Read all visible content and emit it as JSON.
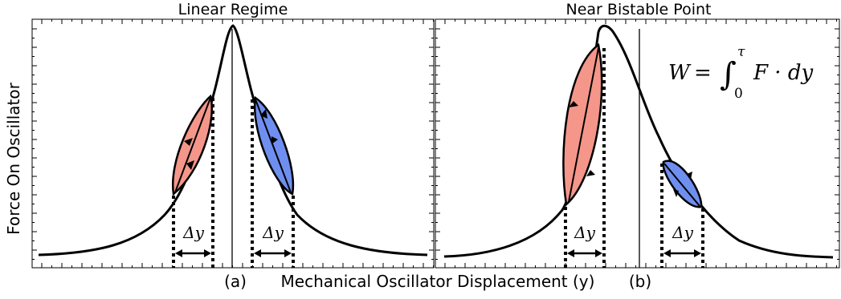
{
  "panels": [
    {
      "id": "a",
      "title": "Linear Regime",
      "tag": "(a)",
      "delta_label": "Δy",
      "loop_colors": [
        "#f4968a",
        "#6f8ff0"
      ]
    },
    {
      "id": "b",
      "title": "Near Bistable Point",
      "tag": "(b)",
      "delta_label": "Δy",
      "loop_colors": [
        "#f4968a",
        "#6f8ff0"
      ],
      "equation": {
        "lhs": "W",
        "eq": "=",
        "integral": "∫",
        "upper": "τ",
        "lower": "0",
        "integrand": "F · dy"
      }
    }
  ],
  "axes": {
    "ylabel": "Force On Oscillator",
    "xlabel": "Mechanical Oscillator Displacement (y)"
  }
}
